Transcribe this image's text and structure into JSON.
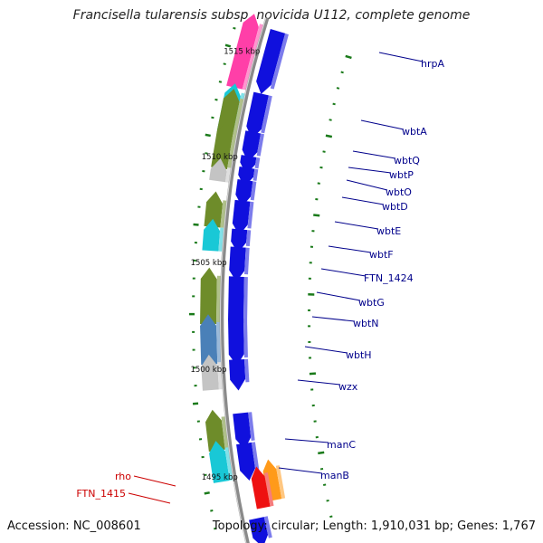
{
  "title": "Francisella tularensis subsp. novicida U112, complete genome",
  "footer": {
    "accession": "Accession: NC_008601",
    "summary": "Topology: circular; Length: 1,910,031 bp; Genes: 1,767"
  },
  "colors": {
    "backbone": "#8a8a8a",
    "gene_blue": "#1010dd",
    "label_blue": "#00008b",
    "label_red": "#cc0000",
    "tick_green": "#1a7a1a",
    "pink": "#ff3fa8",
    "olive": "#6e8c2a",
    "cyan": "#19c8d6",
    "steel": "#4a80b8",
    "grey": "#c4c4c4",
    "orange": "#ff9a1a",
    "red": "#ee1111"
  },
  "scale_labels": [
    "1515 kbp",
    "1510 kbp",
    "1505 kbp",
    "1500 kbp",
    "1495 kbp"
  ],
  "gene_labels": [
    {
      "text": "hrpA",
      "color": "label_blue"
    },
    {
      "text": "wbtA",
      "color": "label_blue"
    },
    {
      "text": "wbtQ",
      "color": "label_blue"
    },
    {
      "text": "wbtP",
      "color": "label_blue"
    },
    {
      "text": "wbtO",
      "color": "label_blue"
    },
    {
      "text": "wbtD",
      "color": "label_blue"
    },
    {
      "text": "wbtE",
      "color": "label_blue"
    },
    {
      "text": "wbtF",
      "color": "label_blue"
    },
    {
      "text": "FTN_1424",
      "color": "label_blue"
    },
    {
      "text": "wbtG",
      "color": "label_blue"
    },
    {
      "text": "wbtN",
      "color": "label_blue"
    },
    {
      "text": "wbtH",
      "color": "label_blue"
    },
    {
      "text": "wzx",
      "color": "label_blue"
    },
    {
      "text": "manC",
      "color": "label_blue"
    },
    {
      "text": "manB",
      "color": "label_blue"
    },
    {
      "text": "rho",
      "color": "label_red"
    },
    {
      "text": "FTN_1415",
      "color": "label_red"
    }
  ]
}
